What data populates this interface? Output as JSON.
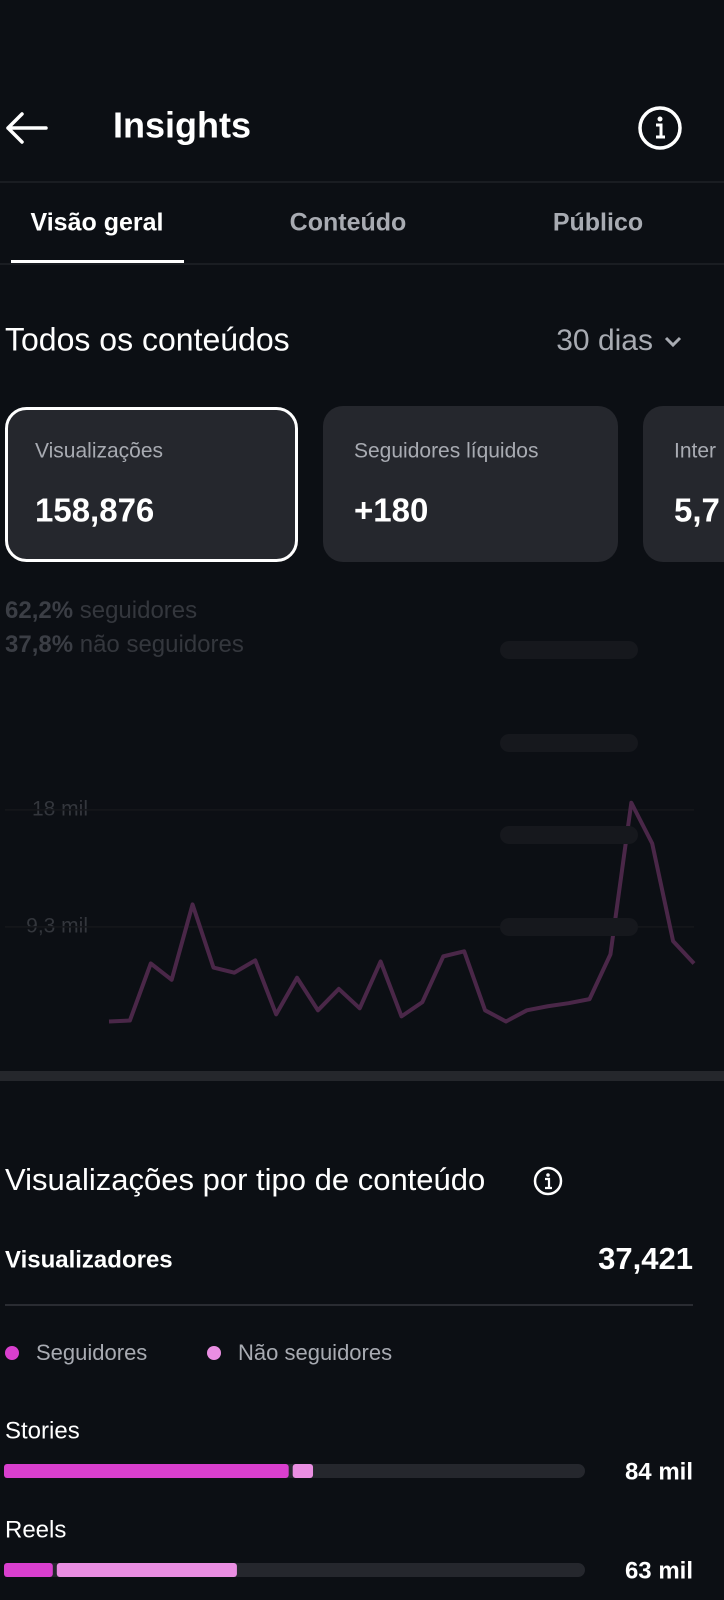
{
  "header": {
    "title": "Insights"
  },
  "tabs": [
    "Visão geral",
    "Conteúdo",
    "Público"
  ],
  "overview": {
    "title": "Todos os conteúdos",
    "period": "30 dias",
    "cards": [
      {
        "label": "Visualizações",
        "value": "158,876"
      },
      {
        "label": "Seguidores líquidos",
        "value": "+180"
      },
      {
        "label": "Inter",
        "value": "5,7"
      }
    ],
    "split": [
      {
        "percent": "62,2%",
        "label": "seguidores"
      },
      {
        "percent": "37,8%",
        "label": "não seguidores"
      }
    ]
  },
  "chart_data": {
    "type": "line",
    "color": "#4a2748",
    "values": [
      2270,
      2340,
      6580,
      5370,
      10970,
      6280,
      5900,
      6810,
      2800,
      5520,
      3100,
      4690,
      3250,
      6730,
      2650,
      3710,
      7110,
      7490,
      3100,
      2270,
      3100,
      3400,
      3630,
      3930,
      7260,
      18530,
      15500,
      8240,
      6580
    ],
    "ylim": [
      0,
      20000
    ],
    "yticks": [
      {
        "value": 9300,
        "label": "9,3 mil"
      },
      {
        "value": 18000,
        "label": "18 mil"
      }
    ],
    "grid": true
  },
  "content_type": {
    "title": "Visualizações por tipo de conteúdo",
    "viewers_label": "Visualizadores",
    "viewers_value": "37,421",
    "legend": [
      {
        "name": "Seguidores",
        "color": "#d93fce"
      },
      {
        "name": "Não seguidores",
        "color": "#ea8ee2"
      }
    ],
    "rows": [
      {
        "label": "Stories",
        "followers_share": 49,
        "non_followers_share": 3.5,
        "value_label": "84 mil"
      },
      {
        "label": "Reels",
        "followers_share": 8.4,
        "non_followers_share": 31,
        "value_label": "63 mil"
      }
    ]
  }
}
